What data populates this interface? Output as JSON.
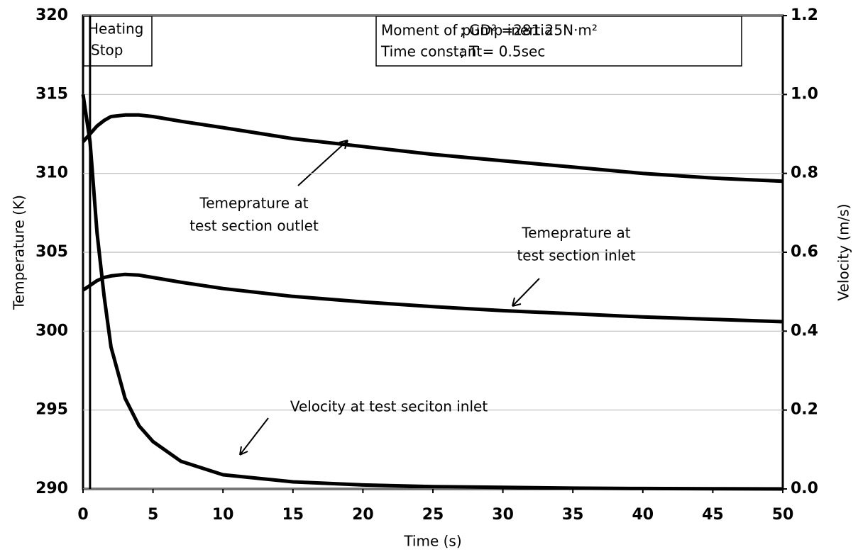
{
  "chart_data": {
    "type": "line",
    "x_label": "Time (s)",
    "y_label": "Temperature (K)",
    "y2_label": "Velocity (m/s)",
    "xlim": [
      0,
      50
    ],
    "xticks": [
      0,
      5,
      10,
      15,
      20,
      25,
      30,
      35,
      40,
      45,
      50
    ],
    "ylim": [
      290,
      320
    ],
    "yticks": [
      290,
      295,
      300,
      305,
      310,
      315,
      320
    ],
    "y2lim": [
      0,
      1.2
    ],
    "y2ticks": [
      {
        "value": 0,
        "label": "0.0"
      },
      0.2,
      0.4,
      0.6,
      0.8,
      {
        "value": 1,
        "label": "1.0"
      },
      1.2
    ],
    "grid": true,
    "x": [
      0,
      0.5,
      1,
      1.5,
      2,
      3,
      4,
      5,
      7,
      10,
      15,
      20,
      25,
      30,
      35,
      40,
      45,
      50
    ],
    "series": [
      {
        "label": [
          "Temeprature at",
          "test section outlet"
        ],
        "color": "#000000",
        "axis": "y",
        "values": [
          312.0,
          312.5,
          313.0,
          313.35,
          313.6,
          313.7,
          313.7,
          313.6,
          313.3,
          312.9,
          312.2,
          311.7,
          311.2,
          310.8,
          310.4,
          310.0,
          309.7,
          309.5
        ]
      },
      {
        "label": [
          "Temeprature at",
          "test section inlet"
        ],
        "color": "#000000",
        "axis": "y",
        "values": [
          302.6,
          302.9,
          303.2,
          303.4,
          303.5,
          303.6,
          303.55,
          303.4,
          303.1,
          302.7,
          302.2,
          301.85,
          301.55,
          301.3,
          301.1,
          300.9,
          300.75,
          300.6
        ]
      },
      {
        "label": [
          "Velocity at test seciton inlet"
        ],
        "color": "#000000",
        "axis": "y2",
        "values": [
          1.0,
          0.88,
          0.65,
          0.49,
          0.36,
          0.23,
          0.16,
          0.12,
          0.07,
          0.036,
          0.018,
          0.01,
          0.006,
          0.004,
          0.002,
          0.001,
          0.0005,
          0
        ]
      }
    ],
    "heating_stop": {
      "x": 0.5,
      "label": [
        "Heating",
        "Stop"
      ]
    },
    "note": [
      [
        "Moment of pump inertia",
        "; GD² =281.25N·m²"
      ],
      [
        "Time constant",
        ";  T = 0.5sec"
      ]
    ]
  }
}
